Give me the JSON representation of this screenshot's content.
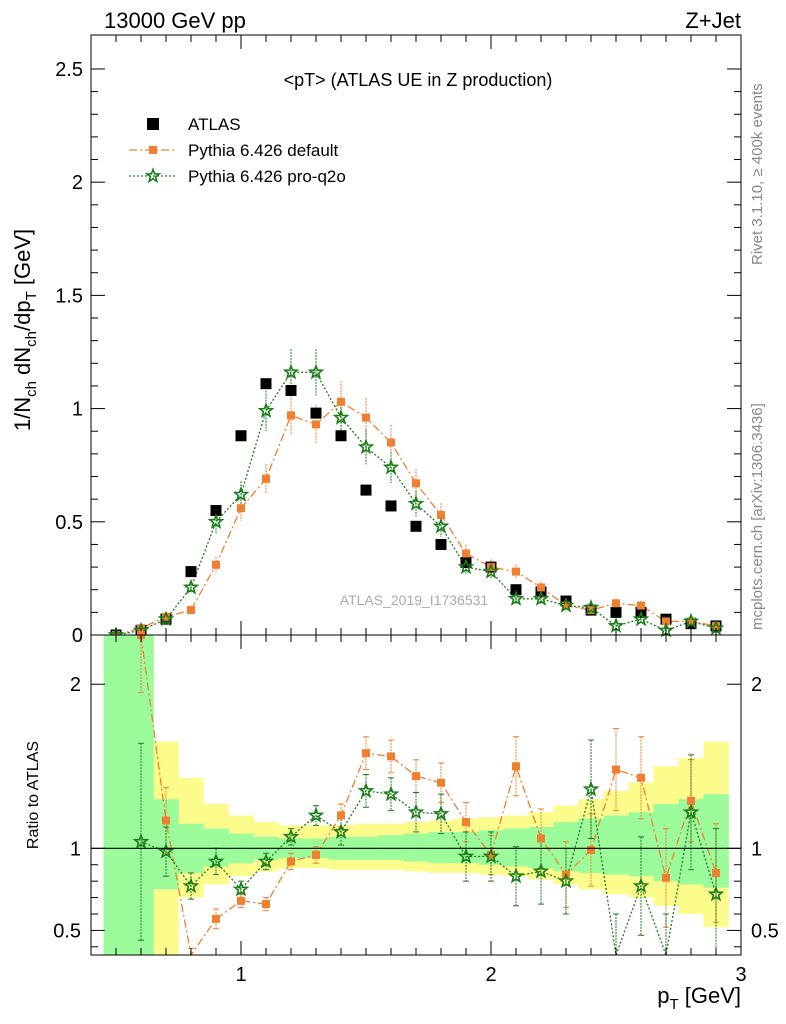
{
  "header": {
    "left": "13000 GeV pp",
    "right": "Z+Jet"
  },
  "side_labels": {
    "top": "Rivet 3.1.10, ≥ 400k events",
    "bottom": "mcplots.cern.ch [arXiv:1306.3436]"
  },
  "colors": {
    "atlas": "#000000",
    "default": "#f07f30",
    "proq2o": "#1a7d1a",
    "band_green": "#9cfc9c",
    "band_yellow": "#fcfc8c"
  },
  "chart_data": [
    {
      "type": "scatter",
      "title": "<pT> (ATLAS UE in Z production)",
      "watermark": "ATLAS_2019_I1736531",
      "ylabel": "1/N_ch dN_ch/dp_T [GeV]",
      "xlim": [
        0.4,
        3.0
      ],
      "ylim": [
        0,
        2.65
      ],
      "yticks": [
        0,
        0.5,
        1,
        1.5,
        2,
        2.5
      ],
      "ytick_labels": [
        "0",
        "0.5",
        "1",
        "1.5",
        "2",
        "2.5"
      ],
      "legend_position": "top-left",
      "x": [
        0.5,
        0.6,
        0.7,
        0.8,
        0.9,
        1.0,
        1.1,
        1.2,
        1.3,
        1.4,
        1.5,
        1.6,
        1.7,
        1.8,
        1.9,
        2.0,
        2.1,
        2.2,
        2.3,
        2.4,
        2.5,
        2.6,
        2.7,
        2.8,
        2.9
      ],
      "series": [
        {
          "name": "ATLAS",
          "marker": "square",
          "values": [
            0.0,
            0.02,
            0.07,
            0.28,
            0.55,
            0.88,
            1.11,
            1.08,
            0.98,
            0.88,
            0.64,
            0.57,
            0.48,
            0.4,
            0.32,
            0.3,
            0.2,
            0.19,
            0.15,
            0.11,
            0.1,
            0.1,
            0.07,
            0.05,
            0.04
          ]
        },
        {
          "name": "Pythia 6.426 default",
          "marker": "square-small",
          "line": "dashdot",
          "values": [
            0.0,
            0.03,
            0.08,
            0.11,
            0.31,
            0.56,
            0.69,
            0.97,
            0.93,
            1.03,
            0.96,
            0.85,
            0.67,
            0.53,
            0.36,
            0.3,
            0.28,
            0.21,
            0.13,
            0.11,
            0.14,
            0.13,
            0.06,
            0.06,
            0.04
          ]
        },
        {
          "name": "Pythia 6.426 pro-q2o",
          "marker": "star",
          "line": "dotted",
          "values": [
            0.0,
            0.02,
            0.07,
            0.21,
            0.5,
            0.62,
            0.99,
            1.16,
            1.16,
            0.96,
            0.83,
            0.74,
            0.58,
            0.48,
            0.3,
            0.28,
            0.16,
            0.16,
            0.13,
            0.12,
            0.04,
            0.07,
            0.02,
            0.06,
            0.03
          ]
        }
      ]
    },
    {
      "type": "scatter",
      "xlabel": "p_T [GeV]",
      "ylabel": "Ratio to ATLAS",
      "xlim": [
        0.4,
        3.0
      ],
      "ylim": [
        0.35,
        2.3
      ],
      "xticks": [
        1,
        2,
        3
      ],
      "xtick_labels": [
        "1",
        "2",
        "3"
      ],
      "yticks": [
        0.5,
        1,
        2
      ],
      "ytick_labels": [
        "0.5",
        "1",
        "2"
      ],
      "reference_line": 1,
      "x": [
        0.6,
        0.7,
        0.8,
        0.9,
        1.0,
        1.1,
        1.2,
        1.3,
        1.4,
        1.5,
        1.6,
        1.7,
        1.8,
        1.9,
        2.0,
        2.1,
        2.2,
        2.3,
        2.4,
        2.5,
        2.6,
        2.7,
        2.8,
        2.9
      ],
      "band_edges": [
        0.45,
        0.65,
        0.75,
        0.85,
        0.95,
        1.05,
        1.15,
        1.25,
        1.35,
        1.45,
        1.55,
        1.65,
        1.75,
        1.85,
        1.95,
        2.05,
        2.15,
        2.25,
        2.35,
        2.45,
        2.55,
        2.65,
        2.75,
        2.85,
        2.95
      ],
      "band_green": [
        [
          0.35,
          2.3
        ],
        [
          0.75,
          1.3
        ],
        [
          0.85,
          1.15
        ],
        [
          0.89,
          1.12
        ],
        [
          0.91,
          1.09
        ],
        [
          0.93,
          1.07
        ],
        [
          0.94,
          1.06
        ],
        [
          0.94,
          1.06
        ],
        [
          0.93,
          1.07
        ],
        [
          0.93,
          1.07
        ],
        [
          0.93,
          1.08
        ],
        [
          0.92,
          1.09
        ],
        [
          0.91,
          1.1
        ],
        [
          0.91,
          1.1
        ],
        [
          0.9,
          1.11
        ],
        [
          0.89,
          1.12
        ],
        [
          0.88,
          1.13
        ],
        [
          0.86,
          1.16
        ],
        [
          0.85,
          1.18
        ],
        [
          0.84,
          1.2
        ],
        [
          0.83,
          1.22
        ],
        [
          0.8,
          1.27
        ],
        [
          0.78,
          1.3
        ],
        [
          0.76,
          1.33
        ]
      ],
      "band_yellow": [
        [
          0.35,
          2.3
        ],
        [
          0.35,
          1.65
        ],
        [
          0.7,
          1.43
        ],
        [
          0.78,
          1.27
        ],
        [
          0.83,
          1.2
        ],
        [
          0.86,
          1.16
        ],
        [
          0.88,
          1.14
        ],
        [
          0.88,
          1.14
        ],
        [
          0.87,
          1.14
        ],
        [
          0.87,
          1.15
        ],
        [
          0.87,
          1.15
        ],
        [
          0.86,
          1.16
        ],
        [
          0.85,
          1.17
        ],
        [
          0.85,
          1.18
        ],
        [
          0.84,
          1.19
        ],
        [
          0.83,
          1.2
        ],
        [
          0.81,
          1.22
        ],
        [
          0.78,
          1.26
        ],
        [
          0.75,
          1.3
        ],
        [
          0.72,
          1.35
        ],
        [
          0.7,
          1.4
        ],
        [
          0.65,
          1.5
        ],
        [
          0.6,
          1.55
        ],
        [
          0.52,
          1.65
        ]
      ],
      "series": [
        {
          "name": "Pythia 6.426 default",
          "values": [
            2.3,
            1.17,
            0.33,
            0.57,
            0.68,
            0.66,
            0.92,
            0.96,
            1.2,
            1.58,
            1.56,
            1.44,
            1.4,
            1.16,
            0.96,
            1.5,
            1.06,
            0.84,
            0.99,
            1.48,
            1.43,
            0.82,
            1.29,
            0.85
          ],
          "errors": [
            0.35,
            0.2,
            0.06,
            0.06,
            0.04,
            0.04,
            0.05,
            0.05,
            0.07,
            0.1,
            0.1,
            0.1,
            0.12,
            0.12,
            0.12,
            0.18,
            0.18,
            0.2,
            0.22,
            0.25,
            0.25,
            0.3,
            0.25,
            0.3
          ]
        },
        {
          "name": "Pythia 6.426 pro-q2o",
          "values": [
            1.04,
            0.98,
            0.77,
            0.92,
            0.75,
            0.92,
            1.07,
            1.2,
            1.1,
            1.35,
            1.33,
            1.22,
            1.21,
            0.95,
            0.95,
            0.83,
            0.86,
            0.8,
            1.36,
            0.3,
            0.77,
            0.3,
            1.22,
            0.72
          ],
          "errors": [
            0.6,
            0.15,
            0.08,
            0.08,
            0.05,
            0.05,
            0.05,
            0.06,
            0.08,
            0.1,
            0.1,
            0.12,
            0.12,
            0.15,
            0.15,
            0.18,
            0.2,
            0.2,
            0.3,
            0.3,
            0.3,
            0.3,
            0.35,
            0.4
          ]
        }
      ]
    }
  ]
}
